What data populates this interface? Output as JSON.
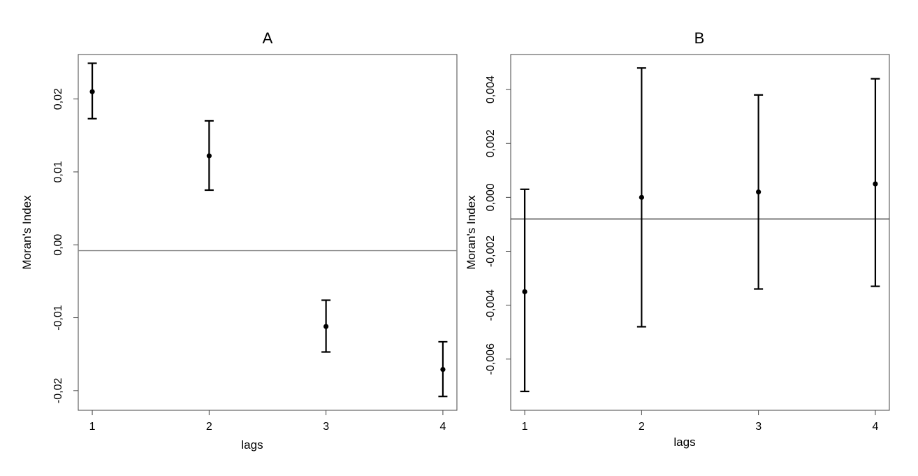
{
  "chart_data": [
    {
      "type": "scatter",
      "title": "A",
      "xlabel": "lags",
      "ylabel": "Moran's Index",
      "x": [
        1,
        2,
        3,
        4
      ],
      "y": [
        0.021,
        0.0122,
        -0.0112,
        -0.0171
      ],
      "y_lower": [
        0.0173,
        0.0075,
        -0.0147,
        -0.0208
      ],
      "y_upper": [
        0.0249,
        0.017,
        -0.0076,
        -0.0133
      ],
      "reference_line": -0.0008,
      "reference_line_color": "#888888",
      "xlim": [
        0.88,
        4.12
      ],
      "ylim": [
        -0.0227,
        0.0261
      ],
      "xticks": [
        1,
        2,
        3,
        4
      ],
      "xtick_labels": [
        "1",
        "2",
        "3",
        "4"
      ],
      "yticks": [
        -0.02,
        -0.01,
        0.0,
        0.01,
        0.02
      ],
      "ytick_labels": [
        "-0,02",
        "-0,01",
        "0,00",
        "0,01",
        "0,02"
      ],
      "grid": false,
      "legend": "none"
    },
    {
      "type": "scatter",
      "title": "B",
      "xlabel": "lags",
      "ylabel": "Moran's Index",
      "x": [
        1,
        2,
        3,
        4
      ],
      "y": [
        -0.0035,
        0.0,
        0.0002,
        0.0005
      ],
      "y_lower": [
        -0.0072,
        -0.0048,
        -0.0034,
        -0.0033
      ],
      "y_upper": [
        0.0003,
        0.0048,
        0.0038,
        0.0044
      ],
      "reference_line": -0.0008,
      "reference_line_color": "#333333",
      "xlim": [
        0.88,
        4.12
      ],
      "ylim": [
        -0.0079,
        0.0053
      ],
      "xticks": [
        1,
        2,
        3,
        4
      ],
      "xtick_labels": [
        "1",
        "2",
        "3",
        "4"
      ],
      "yticks": [
        -0.006,
        -0.004,
        -0.002,
        0.0,
        0.002,
        0.004
      ],
      "ytick_labels": [
        "-0,006",
        "-0,004",
        "-0,002",
        "0,000",
        "0,002",
        "0,004"
      ],
      "grid": false,
      "legend": "none"
    }
  ]
}
